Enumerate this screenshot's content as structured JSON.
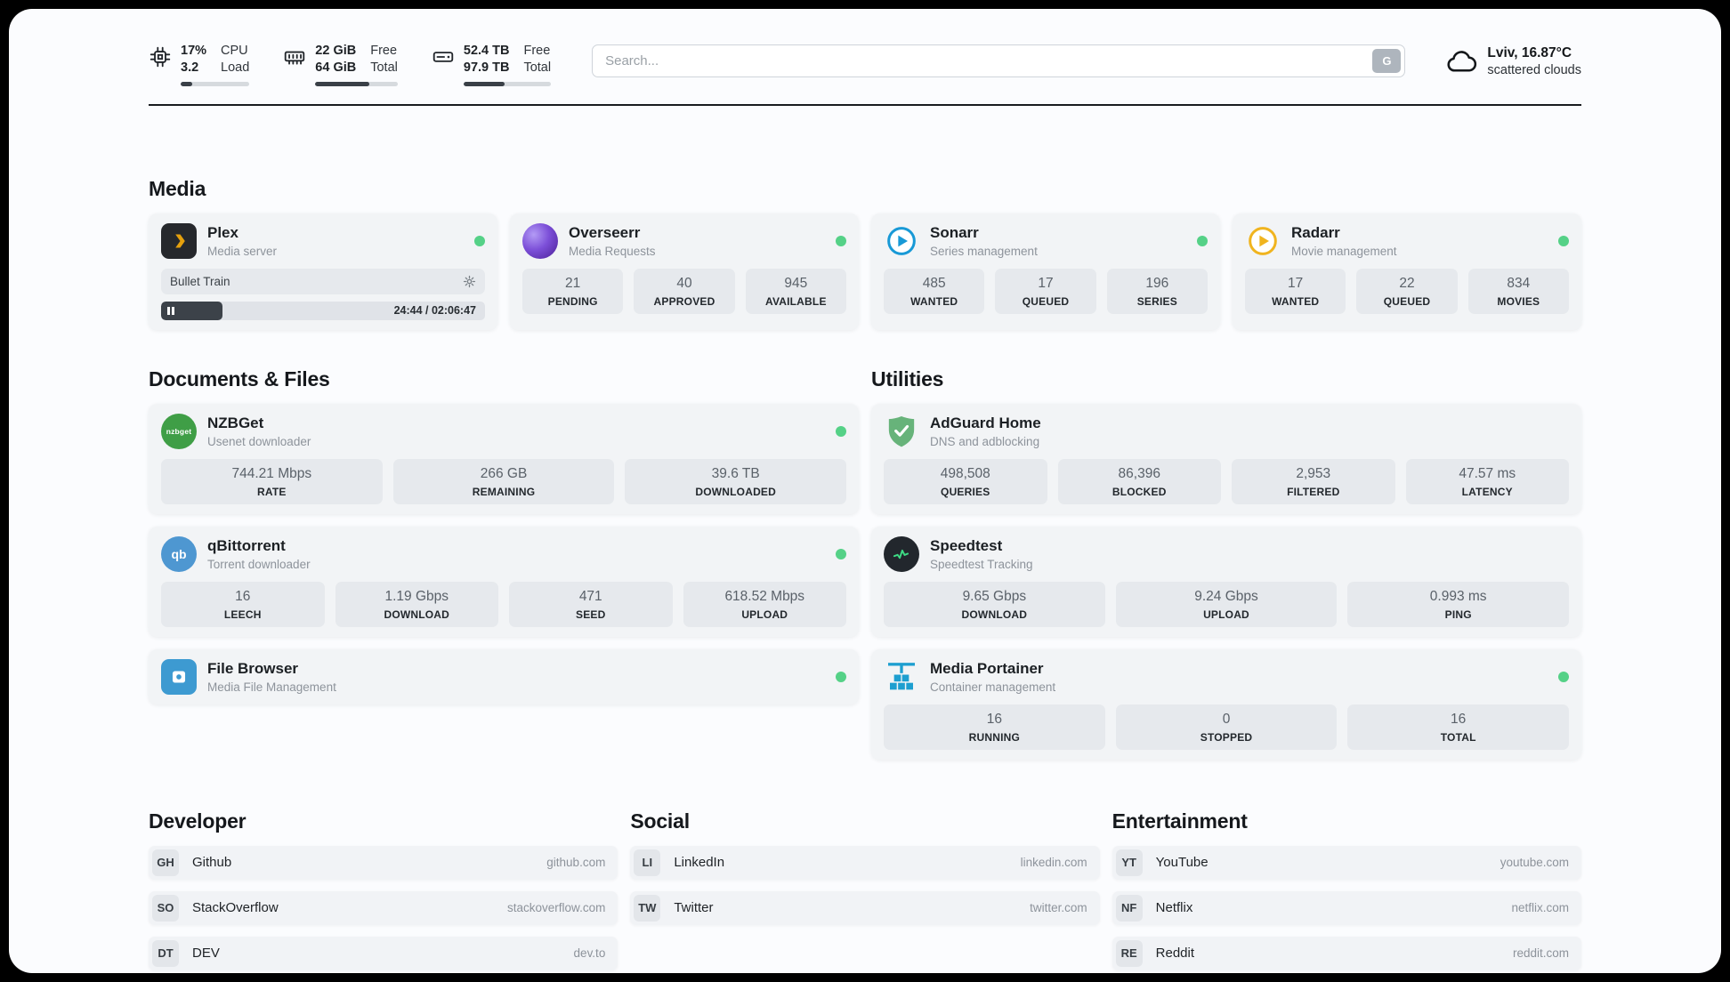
{
  "colors": {
    "status_green": "#55d187",
    "plex_orange": "#e5a00d",
    "sonarr_blue": "#1899d6",
    "radarr_yellow": "#f0b41f",
    "nzbget_green": "#3f9e46",
    "qbittorrent_blue": "#4e97d1",
    "filebrowser_blue": "#3d9ad1",
    "adguard_green": "#67b37a",
    "speedtest_green": "#3ddc84",
    "portainer_blue": "#1d9fd0"
  },
  "header": {
    "cpu": {
      "value_top": "17%",
      "value_bottom": "3.2",
      "label_top": "CPU",
      "label_bottom": "Load",
      "bar_percent": 17
    },
    "ram": {
      "value_top": "22 GiB",
      "value_bottom": "64 GiB",
      "label_top": "Free",
      "label_bottom": "Total",
      "bar_percent": 66
    },
    "disk": {
      "value_top": "52.4 TB",
      "value_bottom": "97.9 TB",
      "label_top": "Free",
      "label_bottom": "Total",
      "bar_percent": 47
    },
    "search": {
      "placeholder": "Search...",
      "engine_label": "G"
    },
    "weather": {
      "location": "Lviv, 16.87°C",
      "condition": "scattered clouds"
    }
  },
  "media": {
    "title": "Media",
    "plex": {
      "name": "Plex",
      "subtitle": "Media server",
      "now_playing": "Bullet Train",
      "time": "24:44 / 02:06:47",
      "progress_percent": 19
    },
    "overseerr": {
      "name": "Overseerr",
      "subtitle": "Media Requests",
      "stats": [
        {
          "value": "21",
          "label": "PENDING"
        },
        {
          "value": "40",
          "label": "APPROVED"
        },
        {
          "value": "945",
          "label": "AVAILABLE"
        }
      ]
    },
    "sonarr": {
      "name": "Sonarr",
      "subtitle": "Series management",
      "stats": [
        {
          "value": "485",
          "label": "WANTED"
        },
        {
          "value": "17",
          "label": "QUEUED"
        },
        {
          "value": "196",
          "label": "SERIES"
        }
      ]
    },
    "radarr": {
      "name": "Radarr",
      "subtitle": "Movie management",
      "stats": [
        {
          "value": "17",
          "label": "WANTED"
        },
        {
          "value": "22",
          "label": "QUEUED"
        },
        {
          "value": "834",
          "label": "MOVIES"
        }
      ]
    }
  },
  "documents": {
    "title": "Documents & Files",
    "nzbget": {
      "name": "NZBGet",
      "subtitle": "Usenet downloader",
      "icon_text": "nzbget",
      "stats": [
        {
          "value": "744.21 Mbps",
          "label": "RATE"
        },
        {
          "value": "266 GB",
          "label": "REMAINING"
        },
        {
          "value": "39.6 TB",
          "label": "DOWNLOADED"
        }
      ]
    },
    "qbittorrent": {
      "name": "qBittorrent",
      "subtitle": "Torrent downloader",
      "icon_text": "qb",
      "stats": [
        {
          "value": "16",
          "label": "LEECH"
        },
        {
          "value": "1.19 Gbps",
          "label": "DOWNLOAD"
        },
        {
          "value": "471",
          "label": "SEED"
        },
        {
          "value": "618.52 Mbps",
          "label": "UPLOAD"
        }
      ]
    },
    "filebrowser": {
      "name": "File Browser",
      "subtitle": "Media File Management"
    }
  },
  "utilities": {
    "title": "Utilities",
    "adguard": {
      "name": "AdGuard Home",
      "subtitle": "DNS and adblocking",
      "stats": [
        {
          "value": "498,508",
          "label": "QUERIES"
        },
        {
          "value": "86,396",
          "label": "BLOCKED"
        },
        {
          "value": "2,953",
          "label": "FILTERED"
        },
        {
          "value": "47.57 ms",
          "label": "LATENCY"
        }
      ]
    },
    "speedtest": {
      "name": "Speedtest",
      "subtitle": "Speedtest Tracking",
      "stats": [
        {
          "value": "9.65 Gbps",
          "label": "DOWNLOAD"
        },
        {
          "value": "9.24 Gbps",
          "label": "UPLOAD"
        },
        {
          "value": "0.993 ms",
          "label": "PING"
        }
      ]
    },
    "portainer": {
      "name": "Media Portainer",
      "subtitle": "Container management",
      "stats": [
        {
          "value": "16",
          "label": "RUNNING"
        },
        {
          "value": "0",
          "label": "STOPPED"
        },
        {
          "value": "16",
          "label": "TOTAL"
        }
      ]
    }
  },
  "bookmarks": {
    "developer": {
      "title": "Developer",
      "items": [
        {
          "abbr": "GH",
          "name": "Github",
          "url": "github.com"
        },
        {
          "abbr": "SO",
          "name": "StackOverflow",
          "url": "stackoverflow.com"
        },
        {
          "abbr": "DT",
          "name": "DEV",
          "url": "dev.to"
        }
      ]
    },
    "social": {
      "title": "Social",
      "items": [
        {
          "abbr": "LI",
          "name": "LinkedIn",
          "url": "linkedin.com"
        },
        {
          "abbr": "TW",
          "name": "Twitter",
          "url": "twitter.com"
        }
      ]
    },
    "entertainment": {
      "title": "Entertainment",
      "items": [
        {
          "abbr": "YT",
          "name": "YouTube",
          "url": "youtube.com"
        },
        {
          "abbr": "NF",
          "name": "Netflix",
          "url": "netflix.com"
        },
        {
          "abbr": "RE",
          "name": "Reddit",
          "url": "reddit.com"
        }
      ]
    }
  }
}
